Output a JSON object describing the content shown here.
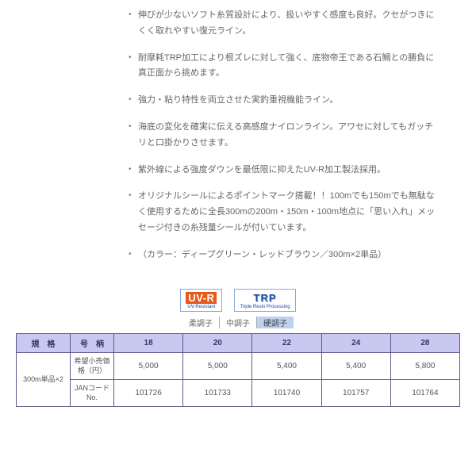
{
  "bullets": [
    "伸びが少ないソフト糸質設計により、扱いやすく感度も良好。クセがつきにくく取れやすい復元ライン。",
    "耐摩耗TRP加工により根ズレに対して強く、底物帝王である石鯛との勝負に真正面から挑めます。",
    "強力・粘り特性を両立させた実釣重視機能ライン。",
    "海底の変化を確実に伝える高感度ナイロンライン。アワセに対してもガッチリと口掛かりさせます。",
    "紫外線による強度ダウンを最低限に抑えたUV-R加工製法採用。",
    "オリジナルシールによるポイントマーク搭載！！100mでも150mでも無駄なく使用するために全長300mの200m・150m・100m地点に「思い入れ」メッセージ付きの糸残量シールが付いています。",
    "（カラー：ディープグリーン・レッドブラウン／300m×2単品）"
  ],
  "badges": {
    "uvr": {
      "big": "UV-R",
      "small": "UV-Resistant"
    },
    "trp": {
      "big": "TRP",
      "small": "Triple Resin Processing"
    }
  },
  "tones": {
    "soft": "柔調子",
    "mid": "中調子",
    "hard": "硬調子"
  },
  "table": {
    "headers": {
      "spec": "規　格",
      "item": "号　柄",
      "c18": "18",
      "c20": "20",
      "c22": "22",
      "c24": "24",
      "c28": "28"
    },
    "spec_value": "300m単品×2",
    "row_price": {
      "label": "希望小売価格（円）",
      "c18": "5,000",
      "c20": "5,000",
      "c22": "5,400",
      "c24": "5,400",
      "c28": "5,800"
    },
    "row_jan": {
      "label": "JANコードNo.",
      "c18": "101726",
      "c20": "101733",
      "c22": "101740",
      "c24": "101757",
      "c28": "101764"
    }
  },
  "style": {
    "text_color": "#666666",
    "header_bg": "#c8c8f0",
    "header_fg": "#333366",
    "border_color": "#5a5a8a",
    "active_tone_bg": "#bcd2ee",
    "uvr_bg": "#e85a1a",
    "trp_fg": "#1a4aa0"
  }
}
